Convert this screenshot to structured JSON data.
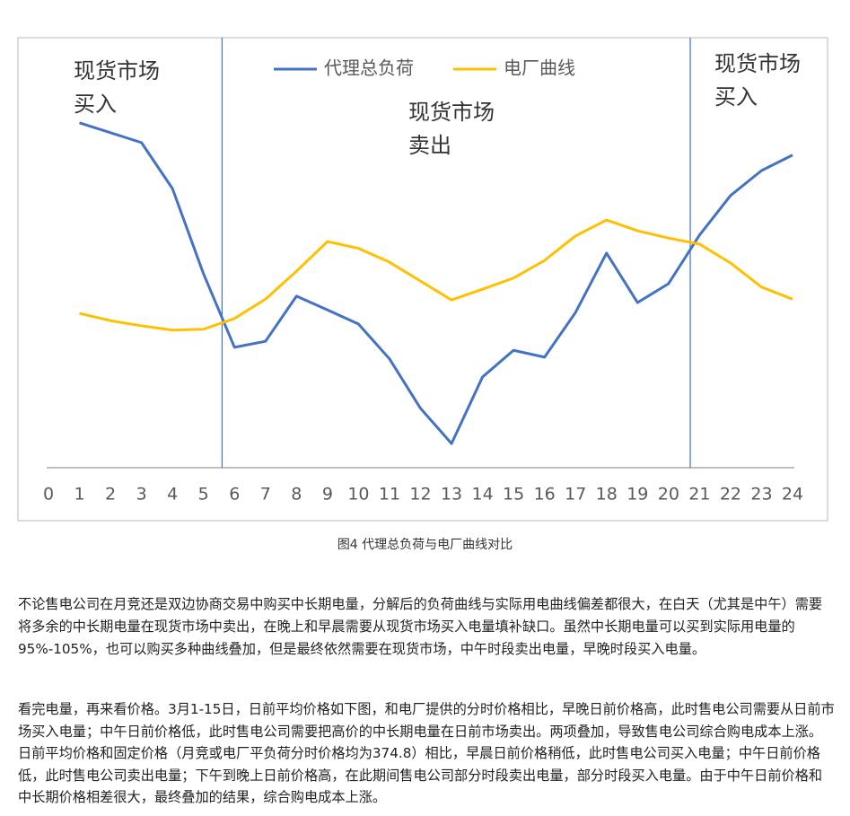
{
  "chart_data": {
    "type": "line",
    "x": [
      1,
      2,
      3,
      4,
      5,
      6,
      7,
      8,
      9,
      10,
      11,
      12,
      13,
      14,
      15,
      16,
      17,
      18,
      19,
      20,
      21,
      22,
      23,
      24
    ],
    "series": [
      {
        "name": "代理总负荷",
        "color": "#4472c4",
        "values": [
          80.2,
          77.9,
          75.6,
          64.9,
          45.1,
          28.0,
          29.4,
          39.9,
          36.7,
          33.4,
          25.3,
          13.8,
          5.6,
          21.1,
          27.3,
          25.7,
          36.1,
          49.9,
          38.4,
          42.8,
          54.1,
          63.3,
          69.1,
          72.7
        ]
      },
      {
        "name": "电厂曲线",
        "color": "#ffc000",
        "values": [
          35.9,
          34.2,
          33.0,
          32.0,
          32.2,
          34.7,
          39.2,
          45.7,
          52.6,
          51.0,
          47.8,
          43.4,
          39.0,
          41.5,
          44.1,
          48.2,
          53.9,
          57.6,
          55.1,
          53.4,
          52.0,
          47.6,
          42.0,
          39.2
        ]
      }
    ],
    "xlim": [
      0,
      24
    ],
    "xticks": [
      0,
      1,
      2,
      3,
      4,
      5,
      6,
      7,
      8,
      9,
      10,
      11,
      12,
      13,
      14,
      15,
      16,
      17,
      18,
      19,
      20,
      21,
      22,
      23,
      24
    ],
    "ylim": [
      0,
      100
    ],
    "vlines": [
      5.6,
      20.7
    ],
    "annotations": [
      [
        "现货市场",
        "买入"
      ],
      [
        "现货市场",
        "卖出"
      ],
      [
        "现货市场",
        "买入"
      ]
    ]
  },
  "caption": "图4  代理总负荷与电厂曲线对比",
  "paragraphs": [
    "不论售电公司在月竞还是双边协商交易中购买中长期电量，分解后的负荷曲线与实际用电曲线偏差都很大，在白天（尤其是中午）需要将多余的中长期电量在现货市场中卖出，在晚上和早晨需要从现货市场买入电量填补缺口。虽然中长期电量可以买到实际用电量的95%-105%，也可以购买多种曲线叠加，但是最终依然需要在现货市场，中午时段卖出电量，早晚时段买入电量。",
    "看完电量，再来看价格。3月1-15日，日前平均价格如下图，和电厂提供的分时价格相比，早晚日前价格高，此时售电公司需要从日前市场买入电量；中午日前价格低，此时售电公司需要把高价的中长期电量在日前市场卖出。两项叠加，导致售电公司综合购电成本上涨。日前平均价格和固定价格（月竞或电厂平负荷分时价格均为374.8）相比，早晨日前价格稍低，此时售电公司买入电量；中午日前价格低，此时售电公司卖出电量；下午到晚上日前价格高，在此期间售电公司部分时段卖出电量，部分时段买入电量。由于中午日前价格和中长期价格相差很大，最终叠加的结果，综合购电成本上涨。"
  ]
}
